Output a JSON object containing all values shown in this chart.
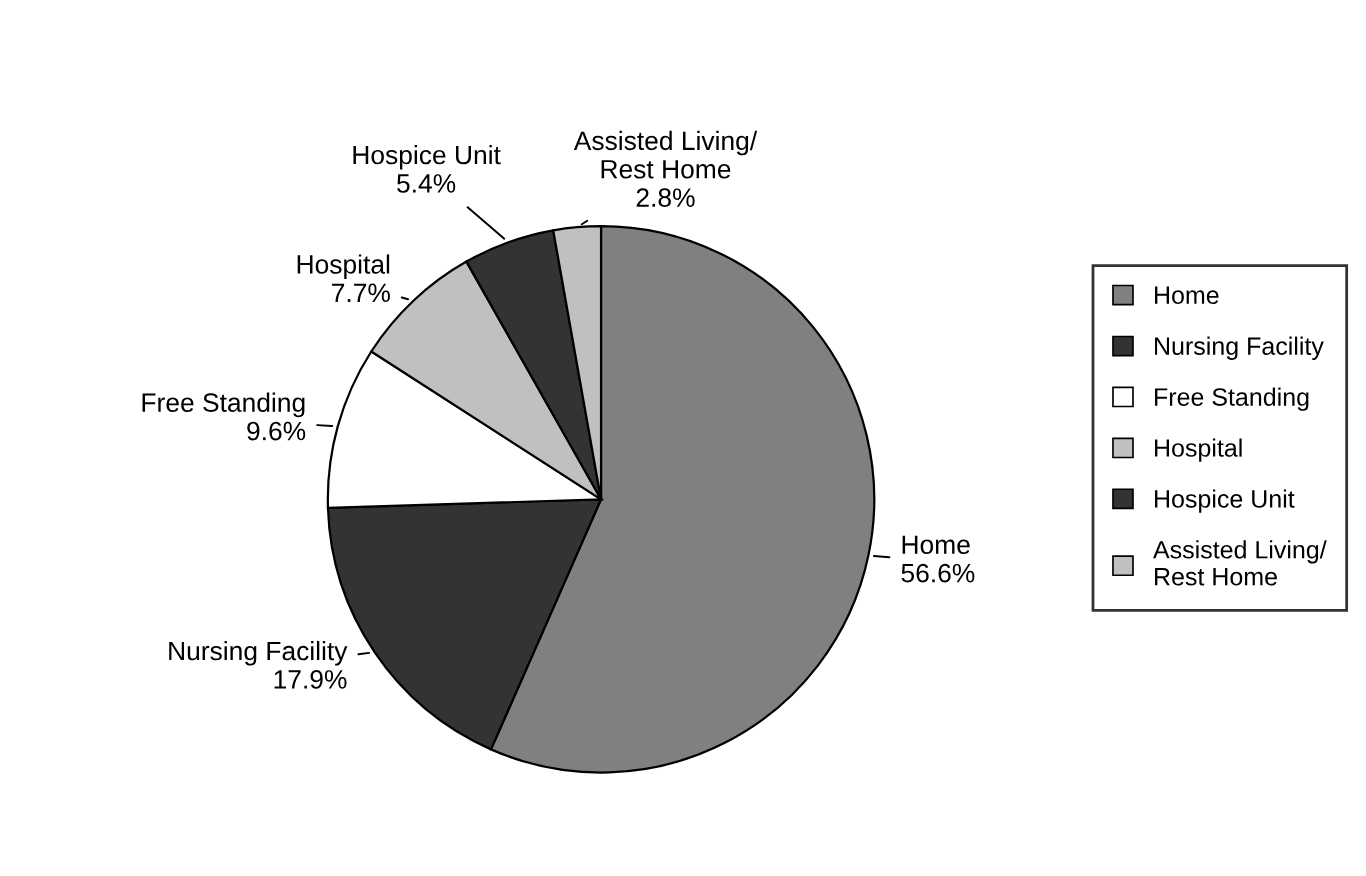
{
  "chart_data": {
    "type": "pie",
    "categories": [
      "Home",
      "Nursing Facility",
      "Free Standing",
      "Hospital",
      "Hospice Unit",
      "Assisted Living/\nRest Home"
    ],
    "values": [
      56.6,
      17.9,
      9.6,
      7.7,
      5.4,
      2.8
    ],
    "value_labels": [
      "56.6%",
      "17.9%",
      "9.6%",
      "7.7%",
      "5.4%",
      "2.8%"
    ],
    "colors": [
      "#808080",
      "#333333",
      "#ffffff",
      "#c0c0c0",
      "#333333",
      "#c0c0c0"
    ],
    "legend": "right"
  }
}
